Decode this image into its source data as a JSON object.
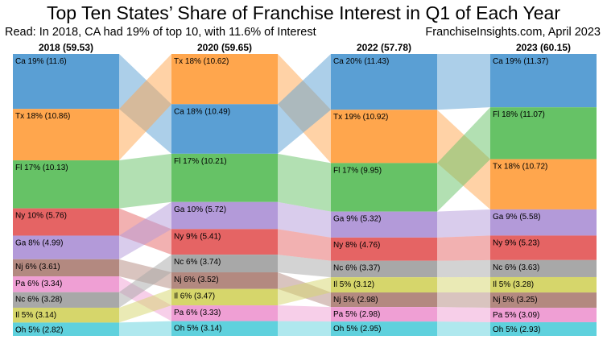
{
  "chart_data": {
    "type": "slope-stacked-bar",
    "title": "Top Ten States’ Share of Franchise Interest in Q1 of Each Year",
    "subtitle_left": "Read: In 2018, CA had 19% of top 10, with 11.6% of Interest",
    "subtitle_right": "FranchiseInsights.com, April 2023",
    "colors": {
      "Ca": "#5a9fd4",
      "Tx": "#ffa64d",
      "Fl": "#66c266",
      "Ny": "#e56464",
      "Ga": "#b39ad9",
      "Nj": "#b38980",
      "Pa": "#ef9fd4",
      "Nc": "#a8a8a8",
      "Il": "#d6d66b",
      "Oh": "#5fd1dd"
    },
    "years": [
      {
        "label": "2018 (59.53)",
        "total": 59.53,
        "segments": [
          {
            "state": "Ca",
            "label": "Ca 19% (11.6)",
            "value": 11.6
          },
          {
            "state": "Tx",
            "label": "Tx 18% (10.86)",
            "value": 10.86
          },
          {
            "state": "Fl",
            "label": "Fl 17% (10.13)",
            "value": 10.13
          },
          {
            "state": "Ny",
            "label": "Ny 10% (5.76)",
            "value": 5.76
          },
          {
            "state": "Ga",
            "label": "Ga 8% (4.99)",
            "value": 4.99
          },
          {
            "state": "Nj",
            "label": "Nj 6% (3.61)",
            "value": 3.61
          },
          {
            "state": "Pa",
            "label": "Pa 6% (3.34)",
            "value": 3.34
          },
          {
            "state": "Nc",
            "label": "Nc 6% (3.28)",
            "value": 3.28
          },
          {
            "state": "Il",
            "label": "Il 5% (3.14)",
            "value": 3.14
          },
          {
            "state": "Oh",
            "label": "Oh 5% (2.82)",
            "value": 2.82
          }
        ]
      },
      {
        "label": "2020 (59.65)",
        "total": 59.65,
        "segments": [
          {
            "state": "Tx",
            "label": "Tx 18% (10.62)",
            "value": 10.62
          },
          {
            "state": "Ca",
            "label": "Ca 18% (10.49)",
            "value": 10.49
          },
          {
            "state": "Fl",
            "label": "Fl 17% (10.21)",
            "value": 10.21
          },
          {
            "state": "Ga",
            "label": "Ga 10% (5.72)",
            "value": 5.72
          },
          {
            "state": "Ny",
            "label": "Ny 9% (5.41)",
            "value": 5.41
          },
          {
            "state": "Nc",
            "label": "Nc 6% (3.74)",
            "value": 3.74
          },
          {
            "state": "Nj",
            "label": "Nj 6% (3.52)",
            "value": 3.52
          },
          {
            "state": "Il",
            "label": "Il 6% (3.47)",
            "value": 3.47
          },
          {
            "state": "Pa",
            "label": "Pa 6% (3.33)",
            "value": 3.33
          },
          {
            "state": "Oh",
            "label": "Oh 5% (3.14)",
            "value": 3.14
          }
        ]
      },
      {
        "label": "2022 (57.78)",
        "total": 57.78,
        "segments": [
          {
            "state": "Ca",
            "label": "Ca 20% (11.43)",
            "value": 11.43
          },
          {
            "state": "Tx",
            "label": "Tx 19% (10.92)",
            "value": 10.92
          },
          {
            "state": "Fl",
            "label": "Fl 17% (9.95)",
            "value": 9.95
          },
          {
            "state": "Ga",
            "label": "Ga 9% (5.32)",
            "value": 5.32
          },
          {
            "state": "Ny",
            "label": "Ny 8% (4.76)",
            "value": 4.76
          },
          {
            "state": "Nc",
            "label": "Nc 6% (3.37)",
            "value": 3.37
          },
          {
            "state": "Il",
            "label": "Il 5% (3.12)",
            "value": 3.12
          },
          {
            "state": "Nj",
            "label": "Nj 5% (2.98)",
            "value": 2.98
          },
          {
            "state": "Pa",
            "label": "Pa 5% (2.98)",
            "value": 2.98
          },
          {
            "state": "Oh",
            "label": "Oh 5% (2.95)",
            "value": 2.95
          }
        ]
      },
      {
        "label": "2023 (60.15)",
        "total": 60.15,
        "segments": [
          {
            "state": "Ca",
            "label": "Ca 19% (11.37)",
            "value": 11.37
          },
          {
            "state": "Fl",
            "label": "Fl 18% (11.07)",
            "value": 11.07
          },
          {
            "state": "Tx",
            "label": "Tx 18% (10.72)",
            "value": 10.72
          },
          {
            "state": "Ga",
            "label": "Ga 9% (5.58)",
            "value": 5.58
          },
          {
            "state": "Ny",
            "label": "Ny 9% (5.23)",
            "value": 5.23
          },
          {
            "state": "Nc",
            "label": "Nc 6% (3.63)",
            "value": 3.63
          },
          {
            "state": "Il",
            "label": "Il 5% (3.28)",
            "value": 3.28
          },
          {
            "state": "Nj",
            "label": "Nj 5% (3.25)",
            "value": 3.25
          },
          {
            "state": "Pa",
            "label": "Pa 5% (3.09)",
            "value": 3.09
          },
          {
            "state": "Oh",
            "label": "Oh 5% (2.93)",
            "value": 2.93
          }
        ]
      }
    ]
  }
}
